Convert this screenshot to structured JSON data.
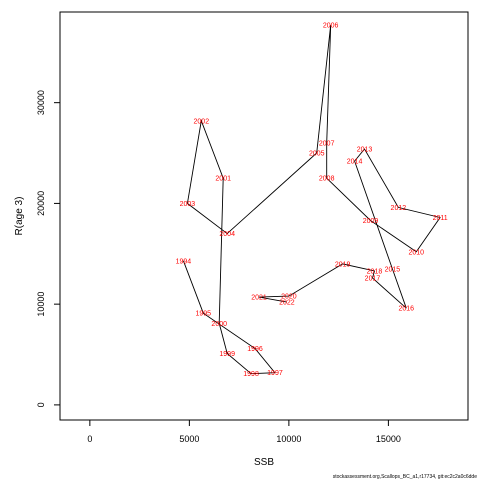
{
  "chart_data": {
    "type": "line",
    "xlabel": "SSB",
    "ylabel": "R(age 3)",
    "xlim": [
      -1500,
      19000
    ],
    "ylim": [
      -1500,
      39000
    ],
    "x_ticks": [
      0,
      5000,
      10000,
      15000
    ],
    "y_ticks": [
      0,
      10000,
      20000,
      30000
    ],
    "grid": false,
    "line_color": "#000000",
    "label_color": "#ff0000",
    "points": [
      {
        "year": "1994",
        "ssb": 4700,
        "r": 14300
      },
      {
        "year": "1995",
        "ssb": 5700,
        "r": 9100
      },
      {
        "year": "1996",
        "ssb": 8300,
        "r": 5600
      },
      {
        "year": "1997",
        "ssb": 9300,
        "r": 3200
      },
      {
        "year": "1998",
        "ssb": 8100,
        "r": 3100
      },
      {
        "year": "1999",
        "ssb": 6900,
        "r": 5100
      },
      {
        "year": "2000",
        "ssb": 6500,
        "r": 8100
      },
      {
        "year": "2001",
        "ssb": 6700,
        "r": 22500
      },
      {
        "year": "2002",
        "ssb": 5600,
        "r": 28200
      },
      {
        "year": "2003",
        "ssb": 4900,
        "r": 20000
      },
      {
        "year": "2004",
        "ssb": 6900,
        "r": 17000
      },
      {
        "year": "2005",
        "ssb": 11400,
        "r": 25000
      },
      {
        "year": "2006",
        "ssb": 12100,
        "r": 37700
      },
      {
        "year": "2007",
        "ssb": 11900,
        "r": 26000
      },
      {
        "year": "2008",
        "ssb": 11900,
        "r": 22500
      },
      {
        "year": "2009",
        "ssb": 14100,
        "r": 18300
      },
      {
        "year": "2010",
        "ssb": 16400,
        "r": 15200
      },
      {
        "year": "2011",
        "ssb": 17600,
        "r": 18600
      },
      {
        "year": "2012",
        "ssb": 15500,
        "r": 19600
      },
      {
        "year": "2013",
        "ssb": 13800,
        "r": 25400
      },
      {
        "year": "2014",
        "ssb": 13300,
        "r": 24200
      },
      {
        "year": "2015",
        "ssb": 15200,
        "r": 13500
      },
      {
        "year": "2016",
        "ssb": 15900,
        "r": 9600
      },
      {
        "year": "2017",
        "ssb": 14200,
        "r": 12600
      },
      {
        "year": "2018",
        "ssb": 14300,
        "r": 13300
      },
      {
        "year": "2019",
        "ssb": 12700,
        "r": 14000
      },
      {
        "year": "2020",
        "ssb": 10000,
        "r": 10800
      },
      {
        "year": "2021",
        "ssb": 8500,
        "r": 10700
      },
      {
        "year": "2022",
        "ssb": 9900,
        "r": 10200
      }
    ]
  },
  "footnote": "stockassessment.org,Scallops_BC_a1,r17734, git:ec2c2a0c6dde"
}
